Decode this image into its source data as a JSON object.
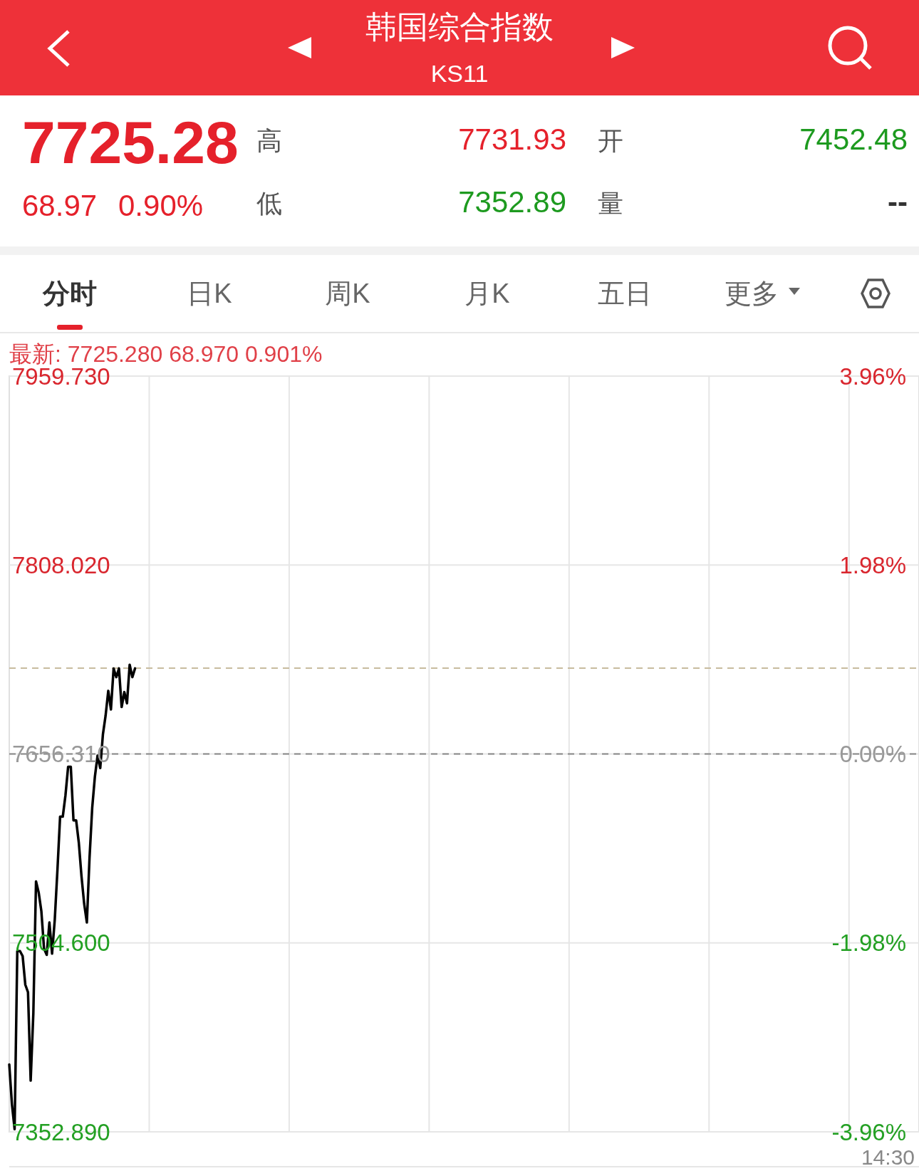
{
  "chart_data": {
    "type": "line",
    "title": "韩国综合指数",
    "subtitle": "KS11",
    "categories": [
      null,
      null,
      null,
      null,
      null,
      null,
      null,
      null,
      null,
      null,
      null,
      null,
      null,
      null,
      null,
      null,
      null,
      null,
      null,
      null,
      null,
      null,
      null,
      null,
      null,
      null,
      null,
      null,
      null,
      null,
      null,
      null,
      null,
      null,
      null,
      null,
      null,
      null,
      null,
      null,
      null,
      null,
      null,
      null,
      null,
      null,
      null,
      null,
      null,
      null,
      null,
      null,
      null,
      null,
      null,
      null,
      null,
      null,
      null,
      null,
      null,
      null,
      null,
      null,
      null,
      null,
      null,
      null,
      null,
      null,
      null,
      null,
      null,
      null,
      null,
      null,
      null,
      null,
      null,
      null,
      null,
      null,
      null,
      null,
      null,
      null,
      null,
      null,
      null,
      null,
      null,
      null,
      null,
      null,
      null,
      null,
      null,
      null,
      null,
      null,
      null,
      null,
      null,
      null,
      null,
      null,
      null,
      null,
      null,
      null,
      null,
      null,
      null,
      null,
      null,
      null,
      null,
      null,
      null,
      null,
      null,
      null,
      null,
      null,
      null,
      null,
      null,
      null,
      null,
      null,
      null,
      null,
      null,
      null,
      null,
      null,
      null,
      null,
      null,
      null,
      null,
      null,
      null,
      null,
      null,
      null,
      null,
      null,
      null,
      null,
      null,
      null,
      null,
      null,
      null,
      null,
      null,
      null,
      null,
      null,
      null,
      null,
      null,
      null,
      null,
      null,
      null,
      null,
      null,
      null,
      null,
      null,
      null,
      null,
      null,
      null,
      null,
      null,
      null,
      null,
      null,
      null,
      null,
      null,
      null,
      null,
      null,
      null,
      null,
      null,
      null,
      null,
      null,
      null,
      null,
      null,
      null,
      null,
      null,
      null,
      null,
      null,
      null,
      null,
      null,
      null,
      null,
      null,
      null,
      null,
      null,
      null,
      null,
      null,
      null,
      null,
      null,
      null,
      null,
      null,
      null,
      null,
      null,
      null,
      null,
      null,
      null,
      null,
      null,
      null,
      null,
      null,
      null,
      null,
      null,
      null,
      null,
      null,
      null,
      null,
      null,
      null,
      null,
      null,
      null,
      null,
      null,
      null,
      null,
      null,
      null,
      null,
      null,
      null,
      null,
      null,
      null,
      null,
      null,
      null,
      null,
      null,
      null,
      null,
      null,
      null,
      null,
      null,
      null,
      null,
      null,
      null,
      null,
      null,
      null,
      null,
      null,
      null,
      null,
      null,
      null,
      null,
      null,
      null,
      null,
      null,
      null,
      null,
      null,
      null,
      null,
      null,
      null,
      null,
      null,
      null,
      null,
      null,
      null,
      null,
      null,
      null,
      null,
      null,
      null,
      null,
      null,
      null,
      null,
      null,
      null,
      null,
      null,
      null,
      null,
      null,
      null,
      null,
      null,
      null,
      null,
      null,
      null,
      null,
      null,
      null,
      null,
      null,
      null,
      null,
      null,
      null,
      null,
      null,
      null,
      null,
      null,
      null,
      null,
      null,
      null
    ],
    "values": [
      7407,
      7375,
      7355,
      7498,
      7498,
      7494,
      7471,
      7465,
      7394,
      7448,
      7554,
      7545,
      7530,
      7500,
      7495,
      7521,
      7496,
      7523,
      7563,
      7606,
      7606,
      7623,
      7646,
      7646,
      7603,
      7603,
      7585,
      7558,
      7536,
      7521,
      7573,
      7613,
      7638,
      7655,
      7645,
      7672,
      7687,
      7707,
      7692,
      7725,
      7718,
      7725,
      7694,
      7706,
      7697,
      7728,
      7718,
      7725,
      null,
      null,
      null,
      null,
      null,
      null,
      null,
      null,
      null,
      null,
      null,
      null,
      null,
      null,
      null,
      null,
      null,
      null,
      null,
      null,
      null,
      null,
      null,
      null,
      null,
      null,
      null,
      null,
      null,
      null,
      null,
      null,
      null,
      null,
      null,
      null,
      null,
      null,
      null,
      null,
      null,
      null,
      null,
      null,
      null,
      null,
      null,
      null,
      null,
      null,
      null,
      null,
      null,
      null,
      null,
      null,
      null,
      null,
      null,
      null,
      null,
      null,
      null,
      null,
      null,
      null,
      null,
      null,
      null,
      null,
      null,
      null,
      null,
      null,
      null,
      null,
      null,
      null,
      null,
      null,
      null,
      null,
      null,
      null,
      null,
      null,
      null,
      null,
      null,
      null,
      null,
      null,
      null,
      null,
      null,
      null,
      null,
      null,
      null,
      null,
      null,
      null,
      null,
      null,
      null,
      null,
      null,
      null,
      null,
      null,
      null,
      null,
      null,
      null,
      null,
      null,
      null,
      null,
      null,
      null,
      null,
      null,
      null,
      null,
      null,
      null,
      null,
      null,
      null,
      null,
      null,
      null,
      null,
      null,
      null,
      null,
      null,
      null,
      null,
      null,
      null,
      null,
      null,
      null,
      null,
      null,
      null,
      null,
      null,
      null,
      null,
      null,
      null,
      null,
      null,
      null,
      null,
      null,
      null,
      null,
      null,
      null,
      null,
      null,
      null,
      null,
      null,
      null,
      null,
      null,
      null,
      null,
      null,
      null,
      null,
      null,
      null,
      null,
      null,
      null,
      null,
      null,
      null,
      null,
      null,
      null,
      null,
      null,
      null,
      null,
      null,
      null,
      null,
      null,
      null,
      null,
      null,
      null,
      null,
      null,
      null,
      null,
      null,
      null,
      null,
      null,
      null,
      null,
      null,
      null,
      null,
      null,
      null,
      null,
      null,
      null,
      null,
      null,
      null,
      null,
      null,
      null,
      null,
      null,
      null,
      null,
      null,
      null,
      null,
      null,
      null,
      null,
      null,
      null,
      null,
      null,
      null,
      null,
      null,
      null,
      null,
      null,
      null,
      null,
      null,
      null,
      null,
      null,
      null,
      null,
      null,
      null,
      null,
      null,
      null,
      null,
      null,
      null,
      null,
      null,
      null,
      null,
      null,
      null,
      null,
      null,
      null,
      null,
      null,
      null,
      null,
      null,
      null,
      null,
      null,
      null,
      null,
      null,
      null,
      null,
      null,
      null,
      null,
      null,
      null,
      null,
      null,
      null,
      null,
      null,
      null,
      null,
      null
    ],
    "color": "#000000",
    "ylim": [
      7352.89,
      7959.73
    ],
    "yticks": [
      {
        "value": 7352.89,
        "label": "7352.890"
      },
      {
        "value": 7504.6,
        "label": "7504.600"
      },
      {
        "value": 7656.31,
        "label": "7656.310"
      },
      {
        "value": 7808.02,
        "label": "7808.020"
      },
      {
        "value": 7959.73,
        "label": "7959.730"
      }
    ],
    "y2lim": [
      -3.96,
      3.96
    ],
    "y2ticks": [
      {
        "value": -3.96,
        "label": "-3.96%"
      },
      {
        "value": -1.98,
        "label": "-1.98%"
      },
      {
        "value": 0,
        "label": "0.00%"
      },
      {
        "value": 1.98,
        "label": "1.98%"
      },
      {
        "value": 3.96,
        "label": "3.96%"
      }
    ],
    "ref_lines": [
      {
        "axis": "y",
        "value": 7656.31,
        "line_style": "dashed",
        "color": "#888888"
      },
      {
        "axis": "y",
        "value": 7725.28,
        "line_style": "dashed",
        "color": "#c8bc9e"
      }
    ],
    "grid": true,
    "legend": false,
    "marker": "none",
    "line_style": "solid",
    "annotations": [
      "7725.28",
      "68.97",
      "0.90%",
      "高",
      "7731.93",
      "开",
      "7452.48",
      "低",
      "7352.89",
      "量",
      "--",
      "分时",
      "日K",
      "周K",
      "月K",
      "五日",
      "更多",
      "最新: 7725.280  68.970  0.901%",
      "14:30"
    ]
  }
}
